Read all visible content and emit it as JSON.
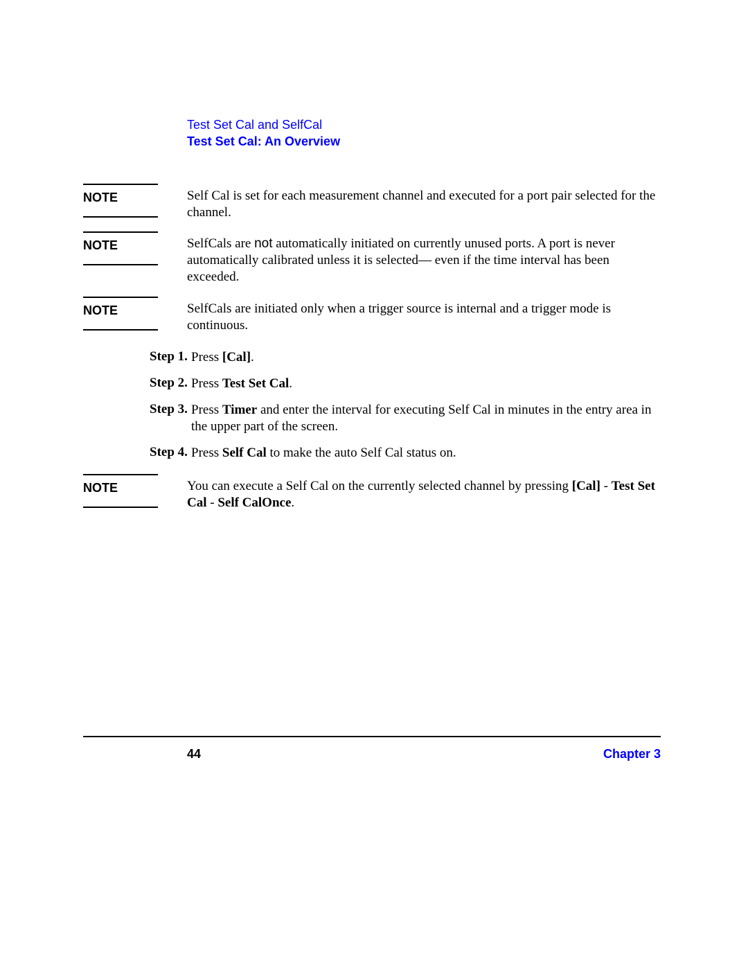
{
  "colors": {
    "link_blue": "#0000ff",
    "text_black": "#000000",
    "background": "#ffffff",
    "rule": "#000000"
  },
  "typography": {
    "serif_family": "Times New Roman",
    "sans_family": "Arial",
    "body_fontsize_pt": 14,
    "header_fontsize_pt": 13,
    "note_label_fontsize_pt": 13,
    "footer_fontsize_pt": 13
  },
  "header": {
    "line1": "Test Set Cal and SelfCal",
    "line2": "Test Set Cal: An Overview"
  },
  "notes": [
    {
      "label": "NOTE",
      "body_parts": [
        {
          "text": "Self Cal is set for each measurement channel and executed for a port pair selected for the channel.",
          "bold": false,
          "sans": false
        }
      ]
    },
    {
      "label": "NOTE",
      "body_parts": [
        {
          "text": "SelfCals are ",
          "bold": false,
          "sans": false
        },
        {
          "text": "not",
          "bold": false,
          "sans": true
        },
        {
          "text": " automatically initiated on currently unused ports. A port is never automatically calibrated unless it is selected— even if the time interval has been exceeded.",
          "bold": false,
          "sans": false
        }
      ]
    },
    {
      "label": "NOTE",
      "body_parts": [
        {
          "text": "SelfCals are initiated only when a trigger source is internal and a trigger mode is continuous.",
          "bold": false,
          "sans": false
        }
      ]
    }
  ],
  "steps": [
    {
      "label": "Step 1.",
      "body_parts": [
        {
          "text": "Press ",
          "bold": false
        },
        {
          "text": "[Cal]",
          "bold": true
        },
        {
          "text": ".",
          "bold": false
        }
      ]
    },
    {
      "label": "Step 2.",
      "body_parts": [
        {
          "text": "Press ",
          "bold": false
        },
        {
          "text": "Test Set Cal",
          "bold": true
        },
        {
          "text": ".",
          "bold": false
        }
      ]
    },
    {
      "label": "Step 3.",
      "body_parts": [
        {
          "text": "Press ",
          "bold": false
        },
        {
          "text": "Timer",
          "bold": true
        },
        {
          "text": " and enter the interval for executing Self Cal in minutes in the entry area in the upper part of the screen.",
          "bold": false
        }
      ]
    },
    {
      "label": "Step 4.",
      "body_parts": [
        {
          "text": "Press ",
          "bold": false
        },
        {
          "text": "Self Cal",
          "bold": true
        },
        {
          "text": " to make the auto Self Cal status on.",
          "bold": false
        }
      ]
    }
  ],
  "note_after": {
    "label": "NOTE",
    "body_parts": [
      {
        "text": "You can execute a Self Cal on the currently selected channel by pressing ",
        "bold": false
      },
      {
        "text": "[Cal]",
        "bold": true
      },
      {
        "text": " - ",
        "bold": false
      },
      {
        "text": "Test Set Cal",
        "bold": true
      },
      {
        "text": " - ",
        "bold": false
      },
      {
        "text": "Self CalOnce",
        "bold": true
      },
      {
        "text": ".",
        "bold": false
      }
    ]
  },
  "footer": {
    "page_number": "44",
    "chapter": "Chapter 3"
  }
}
